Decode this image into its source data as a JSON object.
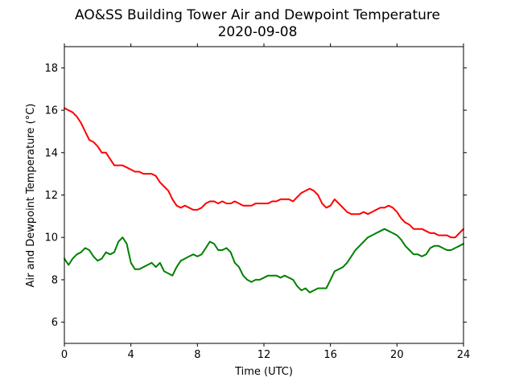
{
  "chart_data": {
    "type": "line",
    "title": "AO&SS Building Tower Air and Dewpoint Temperature",
    "subtitle": "2020-09-08",
    "xlabel": "Time (UTC)",
    "ylabel": "Air and Dewpoint Temperature (°C)",
    "xlim": [
      0,
      24
    ],
    "ylim": [
      5,
      19
    ],
    "xticks": [
      0,
      4,
      8,
      12,
      16,
      20,
      24
    ],
    "yticks": [
      6,
      8,
      10,
      12,
      14,
      16,
      18
    ],
    "grid": false,
    "legend": "none",
    "series": [
      {
        "color": "#ff0000",
        "x": [
          0,
          0.25,
          0.5,
          0.75,
          1.0,
          1.25,
          1.5,
          1.75,
          2.0,
          2.25,
          2.5,
          2.75,
          3.0,
          3.25,
          3.5,
          3.75,
          4.0,
          4.25,
          4.5,
          4.75,
          5.0,
          5.25,
          5.5,
          5.75,
          6.0,
          6.25,
          6.5,
          6.75,
          7.0,
          7.25,
          7.5,
          7.75,
          8.0,
          8.25,
          8.5,
          8.75,
          9.0,
          9.25,
          9.5,
          9.75,
          10.0,
          10.25,
          10.5,
          10.75,
          11.0,
          11.25,
          11.5,
          11.75,
          12.0,
          12.25,
          12.5,
          12.75,
          13.0,
          13.25,
          13.5,
          13.75,
          14.0,
          14.25,
          14.5,
          14.75,
          15.0,
          15.25,
          15.5,
          15.75,
          16.0,
          16.25,
          16.5,
          16.75,
          17.0,
          17.25,
          17.5,
          17.75,
          18.0,
          18.25,
          18.5,
          18.75,
          19.0,
          19.25,
          19.5,
          19.75,
          20.0,
          20.25,
          20.5,
          20.75,
          21.0,
          21.25,
          21.5,
          21.75,
          22.0,
          22.25,
          22.5,
          22.75,
          23.0,
          23.25,
          23.5,
          23.75,
          24.0
        ],
        "y": [
          16.1,
          16.0,
          15.9,
          15.7,
          15.4,
          15.0,
          14.6,
          14.5,
          14.3,
          14.0,
          14.0,
          13.7,
          13.4,
          13.4,
          13.4,
          13.3,
          13.2,
          13.1,
          13.1,
          13.0,
          13.0,
          13.0,
          12.9,
          12.6,
          12.4,
          12.2,
          11.8,
          11.5,
          11.4,
          11.5,
          11.4,
          11.3,
          11.3,
          11.4,
          11.6,
          11.7,
          11.7,
          11.6,
          11.7,
          11.6,
          11.6,
          11.7,
          11.6,
          11.5,
          11.5,
          11.5,
          11.6,
          11.6,
          11.6,
          11.6,
          11.7,
          11.7,
          11.8,
          11.8,
          11.8,
          11.7,
          11.9,
          12.1,
          12.2,
          12.3,
          12.2,
          12.0,
          11.6,
          11.4,
          11.5,
          11.8,
          11.6,
          11.4,
          11.2,
          11.1,
          11.1,
          11.1,
          11.2,
          11.1,
          11.2,
          11.3,
          11.4,
          11.4,
          11.5,
          11.4,
          11.2,
          10.9,
          10.7,
          10.6,
          10.4,
          10.4,
          10.4,
          10.3,
          10.2,
          10.2,
          10.1,
          10.1,
          10.1,
          10.0,
          10.0,
          10.2,
          10.4
        ]
      },
      {
        "color": "#008000",
        "x": [
          0,
          0.25,
          0.5,
          0.75,
          1.0,
          1.25,
          1.5,
          1.75,
          2.0,
          2.25,
          2.5,
          2.75,
          3.0,
          3.25,
          3.5,
          3.75,
          4.0,
          4.25,
          4.5,
          4.75,
          5.0,
          5.25,
          5.5,
          5.75,
          6.0,
          6.25,
          6.5,
          6.75,
          7.0,
          7.25,
          7.5,
          7.75,
          8.0,
          8.25,
          8.5,
          8.75,
          9.0,
          9.25,
          9.5,
          9.75,
          10.0,
          10.25,
          10.5,
          10.75,
          11.0,
          11.25,
          11.5,
          11.75,
          12.0,
          12.25,
          12.5,
          12.75,
          13.0,
          13.25,
          13.5,
          13.75,
          14.0,
          14.25,
          14.5,
          14.75,
          15.0,
          15.25,
          15.5,
          15.75,
          16.0,
          16.25,
          16.5,
          16.75,
          17.0,
          17.25,
          17.5,
          17.75,
          18.0,
          18.25,
          18.5,
          18.75,
          19.0,
          19.25,
          19.5,
          19.75,
          20.0,
          20.25,
          20.5,
          20.75,
          21.0,
          21.25,
          21.5,
          21.75,
          22.0,
          22.25,
          22.5,
          22.75,
          23.0,
          23.25,
          23.5,
          23.75,
          24.0
        ],
        "y": [
          9.0,
          8.7,
          9.0,
          9.2,
          9.3,
          9.5,
          9.4,
          9.1,
          8.9,
          9.0,
          9.3,
          9.2,
          9.3,
          9.8,
          10.0,
          9.7,
          8.8,
          8.5,
          8.5,
          8.6,
          8.7,
          8.8,
          8.6,
          8.8,
          8.4,
          8.3,
          8.2,
          8.6,
          8.9,
          9.0,
          9.1,
          9.2,
          9.1,
          9.2,
          9.5,
          9.8,
          9.7,
          9.4,
          9.4,
          9.5,
          9.3,
          8.8,
          8.6,
          8.2,
          8.0,
          7.9,
          8.0,
          8.0,
          8.1,
          8.2,
          8.2,
          8.2,
          8.1,
          8.2,
          8.1,
          8.0,
          7.7,
          7.5,
          7.6,
          7.4,
          7.5,
          7.6,
          7.6,
          7.6,
          8.0,
          8.4,
          8.5,
          8.6,
          8.8,
          9.1,
          9.4,
          9.6,
          9.8,
          10.0,
          10.1,
          10.2,
          10.3,
          10.4,
          10.3,
          10.2,
          10.1,
          9.9,
          9.6,
          9.4,
          9.2,
          9.2,
          9.1,
          9.2,
          9.5,
          9.6,
          9.6,
          9.5,
          9.4,
          9.4,
          9.5,
          9.6,
          9.7
        ]
      }
    ]
  }
}
